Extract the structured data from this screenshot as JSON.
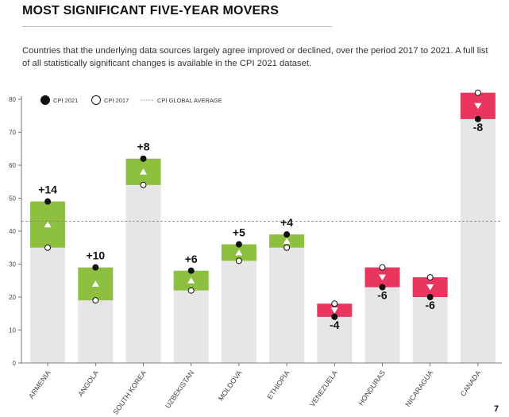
{
  "page": {
    "title": "MOST SIGNIFICANT FIVE-YEAR MOVERS",
    "subtitle": "Countries that the underlying data sources largely agree improved or declined, over the period 2017 to 2021. A full list of all statistically significant changes is available in the CPI 2021 dataset.",
    "page_number": "7"
  },
  "colors": {
    "improved": "#8dc03f",
    "declined": "#e8365f",
    "base_bar": "#e6e6e6",
    "dot_2021": "#111111",
    "dot_2017": "#ffffff",
    "axis": "#555555",
    "average_line": "#888888"
  },
  "chart_data": {
    "type": "bar",
    "title": "MOST SIGNIFICANT FIVE-YEAR MOVERS",
    "xlabel": "",
    "ylabel": "",
    "ylim": [
      0,
      80
    ],
    "yticks": [
      "0",
      "10",
      "20",
      "30",
      "40",
      "50",
      "60",
      "70",
      "80"
    ],
    "grid": false,
    "legend_position": "top-left",
    "legend": {
      "cpi_2021": "CPI 2021",
      "cpi_2017": "CPI 2017",
      "global_average": "CPI GLOBAL AVERAGE"
    },
    "global_average": 43,
    "categories": [
      "ARMENIA",
      "ANGOLA",
      "SOUTH KOREA",
      "UZBEKISTAN",
      "MOLDOVA",
      "ETHIOPIA",
      "VENEZUELA",
      "HONDURAS",
      "NICARAGUA",
      "CANADA"
    ],
    "series": [
      {
        "name": "CPI 2017",
        "values": [
          35,
          19,
          54,
          22,
          31,
          35,
          18,
          29,
          26,
          82
        ]
      },
      {
        "name": "CPI 2021",
        "values": [
          49,
          29,
          62,
          28,
          36,
          39,
          14,
          23,
          20,
          74
        ]
      }
    ],
    "change_labels": [
      "+14",
      "+10",
      "+8",
      "+6",
      "+5",
      "+4",
      "-4",
      "-6",
      "-6",
      "-8"
    ]
  }
}
